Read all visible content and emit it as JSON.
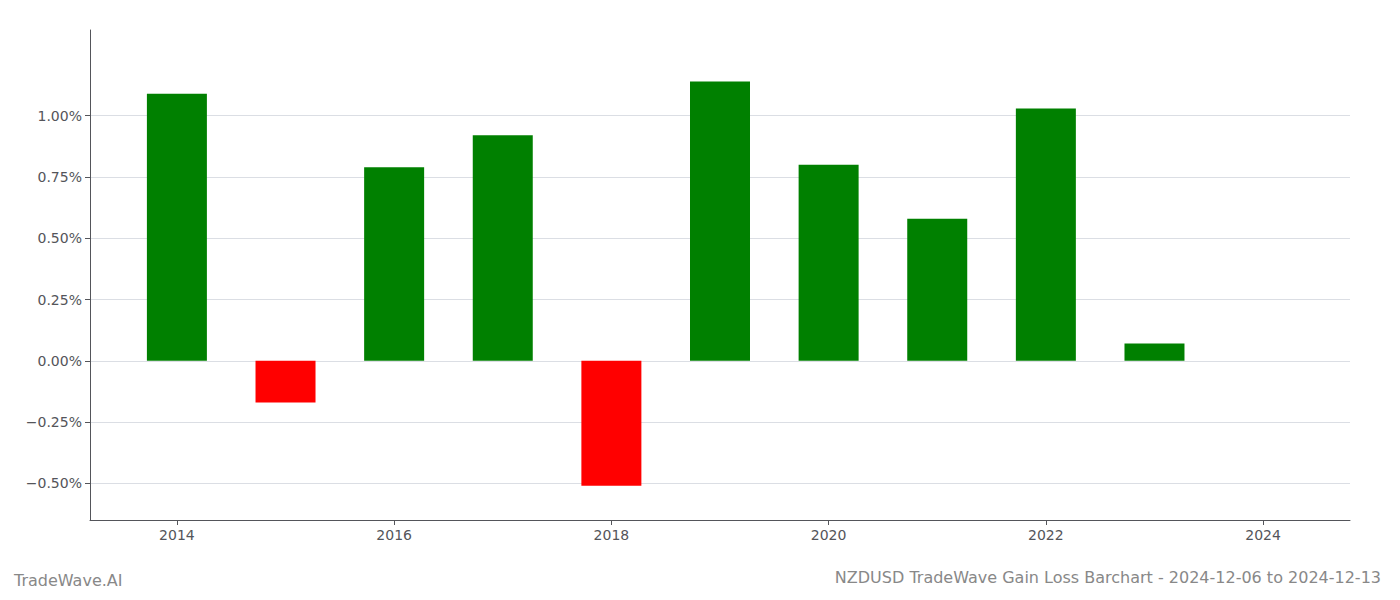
{
  "chart_data": {
    "type": "bar",
    "title": "NZDUSD TradeWave Gain Loss Barchart - 2024-12-06 to 2024-12-13",
    "annotations": [
      "TradeWave.AI"
    ],
    "x": [
      2014,
      2015,
      2016,
      2017,
      2018,
      2019,
      2020,
      2021,
      2022,
      2023
    ],
    "values": [
      0.0109,
      -0.0017,
      0.0079,
      0.0092,
      -0.0051,
      0.0114,
      0.008,
      0.0058,
      0.0103,
      0.0007
    ],
    "colors": [
      "#008000",
      "#ff0000",
      "#008000",
      "#008000",
      "#ff0000",
      "#008000",
      "#008000",
      "#008000",
      "#008000",
      "#008000"
    ],
    "xlim": [
      2013.2,
      2024.8
    ],
    "xticks": [
      2014,
      2016,
      2018,
      2020,
      2022,
      2024
    ],
    "ylim": [
      -0.0065,
      0.0135
    ],
    "yticks": [
      {
        "value": -0.005,
        "label": "−0.50%"
      },
      {
        "value": -0.0025,
        "label": "−0.25%"
      },
      {
        "value": 0.0,
        "label": "0.00%"
      },
      {
        "value": 0.0025,
        "label": "0.25%"
      },
      {
        "value": 0.005,
        "label": "0.50%"
      },
      {
        "value": 0.0075,
        "label": "0.75%"
      },
      {
        "value": 0.01,
        "label": "1.00%"
      }
    ],
    "grid": true
  }
}
